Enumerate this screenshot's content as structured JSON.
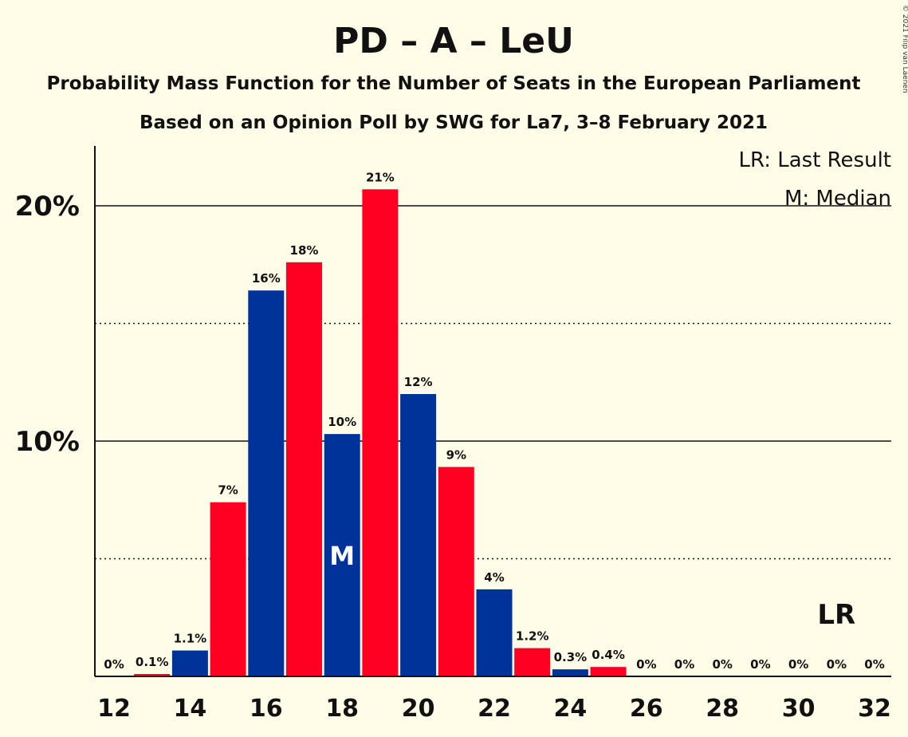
{
  "chart_data": {
    "type": "bar",
    "title": "PD – A – LeU",
    "subtitle": "Probability Mass Function for the Number of Seats in the European Parliament",
    "subtitle2": "Based on an Opinion Poll by SWG for La7, 3–8 February 2021",
    "legend": {
      "last_result": "LR: Last Result",
      "median": "M: Median"
    },
    "copyright": "© 2021 Filip van Laenen",
    "x": [
      12,
      13,
      14,
      15,
      16,
      17,
      18,
      19,
      20,
      21,
      22,
      23,
      24,
      25,
      26,
      27,
      28,
      29,
      30,
      31,
      32
    ],
    "values": [
      0,
      0.1,
      1.1,
      7.4,
      16.4,
      17.6,
      10.3,
      20.7,
      12.0,
      8.9,
      3.7,
      1.2,
      0.3,
      0.4,
      0,
      0,
      0,
      0,
      0,
      0,
      0
    ],
    "labels": [
      "0%",
      "0.1%",
      "1.1%",
      "7%",
      "16%",
      "18%",
      "10%",
      "21%",
      "12%",
      "9%",
      "4%",
      "1.2%",
      "0.3%",
      "0.4%",
      "0%",
      "0%",
      "0%",
      "0%",
      "0%",
      "0%",
      "0%"
    ],
    "x_tick_labels": [
      "12",
      "14",
      "16",
      "18",
      "20",
      "22",
      "24",
      "26",
      "28",
      "30",
      "32"
    ],
    "x_tick_values": [
      12,
      14,
      16,
      18,
      20,
      22,
      24,
      26,
      28,
      30,
      32
    ],
    "y_tick_labels": [
      "10%",
      "20%"
    ],
    "y_tick_values": [
      10,
      20
    ],
    "y_minor_gridlines": [
      5,
      15
    ],
    "ylim": [
      0,
      22.5
    ],
    "median": 18,
    "median_label": "M",
    "last_result": 31,
    "last_result_label": "LR",
    "colors": {
      "blue": "#003399",
      "red": "#FF0022",
      "background": "#FFFDE7"
    }
  }
}
